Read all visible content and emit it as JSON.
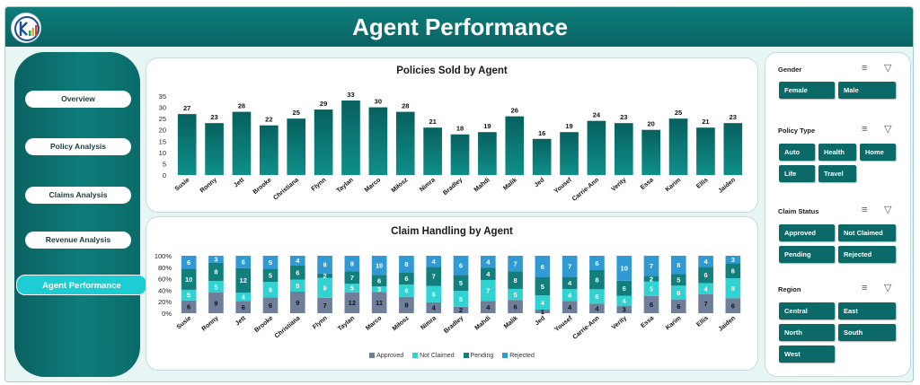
{
  "header": {
    "title": "Agent Performance"
  },
  "nav": {
    "items": [
      {
        "label": "Overview"
      },
      {
        "label": "Policy Analysis"
      },
      {
        "label": "Claims Analysis"
      },
      {
        "label": "Revenue Analysis"
      },
      {
        "label": "Agent Performance"
      }
    ],
    "active_index": 4
  },
  "colors": {
    "accent": "#0a6a68",
    "approved": "#6f7f9a",
    "not_claimed": "#31d3d2",
    "pending": "#137f7c",
    "rejected": "#2f9ad3"
  },
  "policies_chart": {
    "title": "Policies Sold by Agent"
  },
  "claims_chart": {
    "title": "Claim Handling by Agent",
    "legend": [
      "Approved",
      "Not Claimed",
      "Pending",
      "Rejected"
    ]
  },
  "chart_data": [
    {
      "type": "bar",
      "title": "Policies Sold by Agent",
      "categories": [
        "Susie",
        "Ronny",
        "Jett",
        "Brooke",
        "Christiana",
        "Flynn",
        "Taylan",
        "Marco",
        "Miłosz",
        "Nimra",
        "Bradley",
        "Mahdi",
        "Malik",
        "Jed",
        "Yousef",
        "Carrie-Ann",
        "Verity",
        "Essa",
        "Karim",
        "Ellis",
        "Jaiden"
      ],
      "values": [
        27,
        23,
        28,
        22,
        25,
        29,
        33,
        30,
        28,
        21,
        18,
        19,
        26,
        16,
        19,
        24,
        23,
        20,
        25,
        21,
        23
      ],
      "ylim": [
        0,
        35
      ],
      "yticks": [
        0,
        5,
        10,
        15,
        20,
        25,
        30,
        35
      ],
      "data_labels": true
    },
    {
      "type": "bar",
      "stacked": "percent",
      "title": "Claim Handling by Agent",
      "categories": [
        "Susie",
        "Ronny",
        "Jett",
        "Brooke",
        "Christiana",
        "Flynn",
        "Taylan",
        "Marco",
        "Miłosz",
        "Nimra",
        "Bradley",
        "Mahdi",
        "Malik",
        "Jed",
        "Yousef",
        "Carrie-Ann",
        "Verity",
        "Essa",
        "Karim",
        "Ellis",
        "Jaiden"
      ],
      "yticks": [
        "0%",
        "20%",
        "40%",
        "60%",
        "80%",
        "100%"
      ],
      "series": [
        {
          "name": "Approved",
          "values": [
            6,
            9,
            6,
            6,
            9,
            7,
            12,
            11,
            8,
            4,
            2,
            4,
            6,
            1,
            4,
            4,
            3,
            6,
            6,
            7,
            6
          ]
        },
        {
          "name": "Not Claimed",
          "values": [
            5,
            5,
            4,
            6,
            5,
            9,
            5,
            3,
            6,
            6,
            5,
            7,
            5,
            4,
            4,
            6,
            4,
            5,
            6,
            4,
            8
          ]
        },
        {
          "name": "Pending",
          "values": [
            10,
            8,
            12,
            5,
            6,
            2,
            7,
            6,
            6,
            7,
            5,
            4,
            8,
            5,
            4,
            8,
            6,
            2,
            5,
            6,
            6
          ]
        },
        {
          "name": "Rejected",
          "values": [
            6,
            3,
            6,
            5,
            4,
            8,
            9,
            10,
            8,
            4,
            6,
            4,
            7,
            6,
            7,
            6,
            10,
            7,
            8,
            4,
            3
          ]
        }
      ],
      "legend_position": "bottom"
    }
  ],
  "slicers": [
    {
      "title": "Gender",
      "items": [
        "Female",
        "Male"
      ]
    },
    {
      "title": "Policy Type",
      "items": [
        "Auto",
        "Health",
        "Home",
        "Life",
        "Travel"
      ]
    },
    {
      "title": "Claim Status",
      "items": [
        "Approved",
        "Not Claimed",
        "Pending",
        "Rejected"
      ]
    },
    {
      "title": "Region",
      "items": [
        "Central",
        "East",
        "North",
        "South",
        "West"
      ]
    }
  ]
}
